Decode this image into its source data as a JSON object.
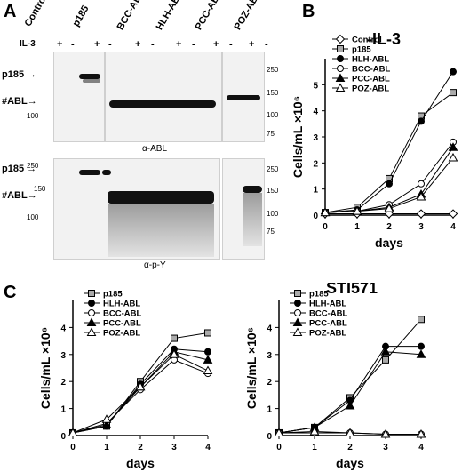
{
  "panel_a": {
    "letter": "A",
    "lanes": [
      "Control",
      "p185",
      "BCC-ABL",
      "HLH-ABL",
      "PCC-ABL",
      "POZ-ABL"
    ],
    "il3_label": "IL-3",
    "il3_signs": [
      "+",
      "-",
      "+",
      "-",
      "+",
      "-",
      "+",
      "-",
      "+",
      "-",
      "+",
      "-"
    ],
    "top_blot": {
      "p185": "p185",
      "abl": "#ABL",
      "mw": [
        "250",
        "150",
        "100",
        "75"
      ],
      "caption": "α-ABL"
    },
    "bottom_blot": {
      "p185": "p185",
      "abl": "#ABL",
      "mw_left": [
        "250",
        "150",
        "100"
      ],
      "mw_right": [
        "250",
        "150",
        "100",
        "75"
      ],
      "caption": "α-p-Y"
    }
  },
  "chart_data": [
    {
      "panel": "B",
      "type": "line",
      "title": "-IL-3",
      "xlabel": "days",
      "ylabel": "Cells/mL ×10⁶",
      "x": [
        0,
        1,
        2,
        3,
        4
      ],
      "xlim": [
        0,
        4
      ],
      "ylim": [
        0,
        6
      ],
      "yticks": [
        0,
        1,
        2,
        3,
        4,
        5
      ],
      "legend": "top-left",
      "series": [
        {
          "name": "Control",
          "marker": "diamond-open",
          "values": [
            0.05,
            0.05,
            0.05,
            0.05,
            0.05
          ]
        },
        {
          "name": "p185",
          "marker": "square-gray",
          "values": [
            0.1,
            0.3,
            1.4,
            3.8,
            4.7
          ]
        },
        {
          "name": "HLH-ABL",
          "marker": "circle-filled",
          "values": [
            0.1,
            0.2,
            1.2,
            3.6,
            5.5
          ]
        },
        {
          "name": "BCC-ABL",
          "marker": "circle-open",
          "values": [
            0.1,
            0.15,
            0.4,
            1.2,
            2.8
          ]
        },
        {
          "name": "PCC-ABL",
          "marker": "triangle-filled",
          "values": [
            0.1,
            0.15,
            0.3,
            0.8,
            2.6
          ]
        },
        {
          "name": "POZ-ABL",
          "marker": "triangle-open",
          "values": [
            0.1,
            0.15,
            0.25,
            0.7,
            2.2
          ]
        }
      ]
    },
    {
      "panel": "C",
      "type": "line",
      "title": "",
      "xlabel": "days",
      "ylabel": "Cells/mL ×10⁶",
      "x": [
        0,
        1,
        2,
        3,
        4
      ],
      "xlim": [
        0,
        4
      ],
      "ylim": [
        0,
        5
      ],
      "yticks": [
        0,
        1,
        2,
        3,
        4
      ],
      "legend": "top-left",
      "series": [
        {
          "name": "p185",
          "marker": "square-gray",
          "values": [
            0.1,
            0.35,
            2.0,
            3.6,
            3.8
          ]
        },
        {
          "name": "HLH-ABL",
          "marker": "circle-filled",
          "values": [
            0.1,
            0.35,
            1.9,
            3.2,
            3.1
          ]
        },
        {
          "name": "BCC-ABL",
          "marker": "circle-open",
          "values": [
            0.1,
            0.45,
            1.7,
            2.8,
            2.3
          ]
        },
        {
          "name": "PCC-ABL",
          "marker": "triangle-filled",
          "values": [
            0.1,
            0.4,
            1.8,
            3.1,
            2.8
          ]
        },
        {
          "name": "POZ-ABL",
          "marker": "triangle-open",
          "values": [
            0.1,
            0.6,
            1.8,
            3.0,
            2.4
          ]
        }
      ]
    },
    {
      "panel": "C",
      "type": "line",
      "title": "STI571",
      "xlabel": "days",
      "ylabel": "Cells/mL ×10⁶",
      "x": [
        0,
        1,
        2,
        3,
        4
      ],
      "xlim": [
        0,
        4
      ],
      "ylim": [
        0,
        5
      ],
      "yticks": [
        0,
        1,
        2,
        3,
        4
      ],
      "legend": "top-left",
      "series": [
        {
          "name": "p185",
          "marker": "square-gray",
          "values": [
            0.1,
            0.3,
            1.4,
            2.8,
            4.3
          ]
        },
        {
          "name": "HLH-ABL",
          "marker": "circle-filled",
          "values": [
            0.1,
            0.3,
            1.3,
            3.3,
            3.3
          ]
        },
        {
          "name": "BCC-ABL",
          "marker": "circle-open",
          "values": [
            0.1,
            0.1,
            0.1,
            0.05,
            0.05
          ]
        },
        {
          "name": "PCC-ABL",
          "marker": "triangle-filled",
          "values": [
            0.1,
            0.3,
            1.1,
            3.1,
            3.0
          ]
        },
        {
          "name": "POZ-ABL",
          "marker": "triangle-open",
          "values": [
            0.1,
            0.15,
            0.1,
            0.05,
            0.05
          ]
        }
      ]
    }
  ],
  "panel_letters": {
    "b": "B",
    "c": "C"
  }
}
